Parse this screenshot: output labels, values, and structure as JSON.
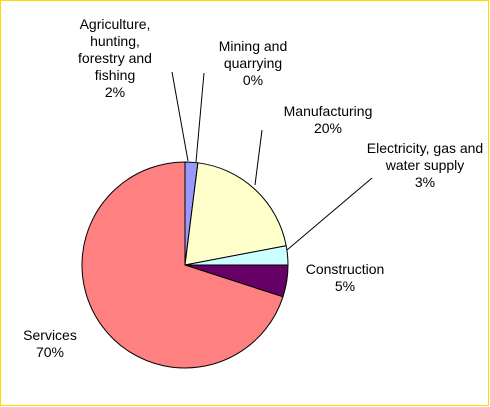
{
  "chart_data": {
    "type": "pie",
    "categories": [
      "Agriculture, hunting, forestry and fishing",
      "Mining and quarrying",
      "Manufacturing",
      "Electricity, gas and water supply",
      "Construction",
      "Services"
    ],
    "values": [
      2,
      0,
      20,
      3,
      5,
      70
    ],
    "value_labels": [
      "2%",
      "0%",
      "20%",
      "3%",
      "5%",
      "70%"
    ],
    "colors": [
      "#9999ff",
      "#993366",
      "#ffffcc",
      "#ccffff",
      "#660066",
      "#ff8080"
    ]
  }
}
